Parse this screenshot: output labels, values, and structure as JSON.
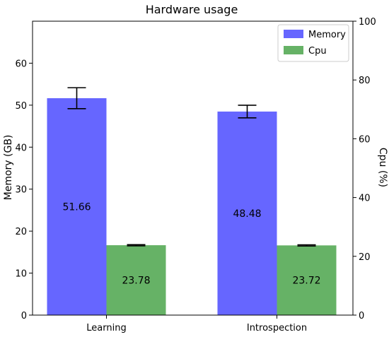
{
  "chart_data": {
    "type": "bar",
    "title": "Hardware usage",
    "categories": [
      "Learning",
      "Introspection"
    ],
    "series": [
      {
        "name": "Memory",
        "axis": "left",
        "color": "#6666ff",
        "values": [
          51.66,
          48.48
        ],
        "errors": [
          2.5,
          1.5
        ],
        "labels": [
          "51.66",
          "48.48"
        ]
      },
      {
        "name": "Cpu",
        "axis": "right",
        "color": "#66b266",
        "values": [
          23.78,
          23.72
        ],
        "errors": [
          0.2,
          0.2
        ],
        "labels": [
          "23.78",
          "23.72"
        ]
      }
    ],
    "y_left": {
      "label": "Memory (GB)",
      "ylim": [
        0,
        70
      ],
      "ticks": [
        0,
        10,
        20,
        30,
        40,
        50,
        60
      ]
    },
    "y_right": {
      "label": "Cpu (%)",
      "ylim": [
        0,
        100
      ],
      "ticks": [
        0,
        20,
        40,
        60,
        80,
        100
      ]
    },
    "grid": false,
    "legend": "top-right"
  }
}
